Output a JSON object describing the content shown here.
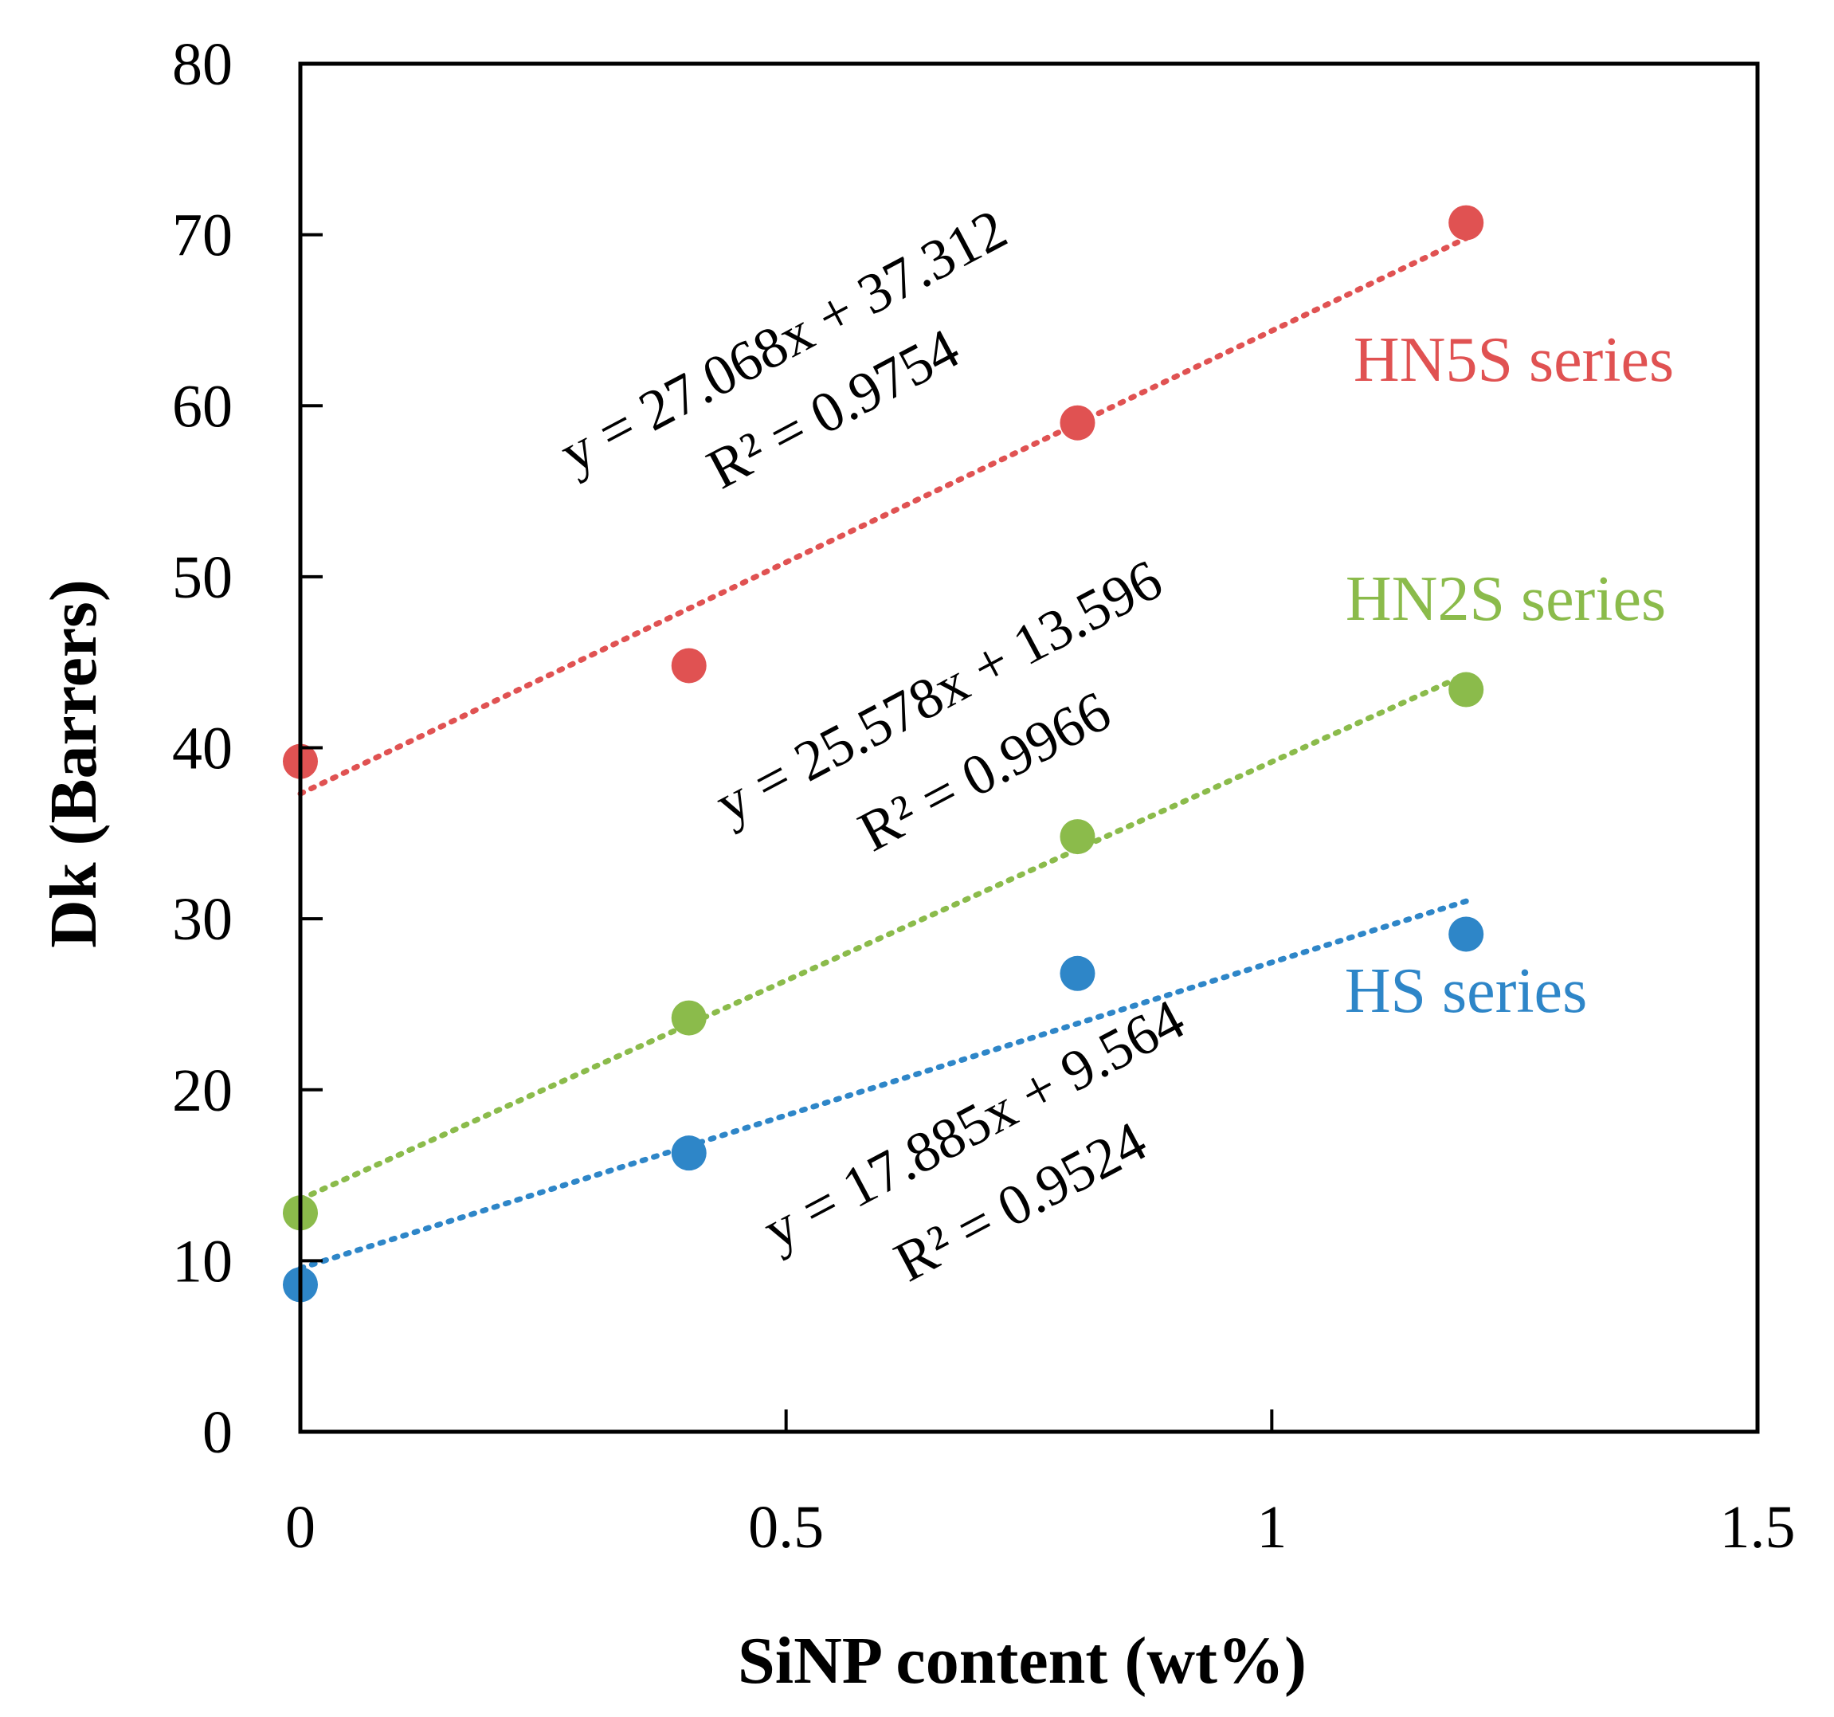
{
  "chart_data": {
    "type": "scatter",
    "title": "",
    "xlabel": "SiNP content (wt%)",
    "ylabel": "Dk (Barrers)",
    "xlim": [
      0,
      1.5
    ],
    "ylim": [
      0,
      80
    ],
    "x_ticks": [
      0,
      0.5,
      1,
      1.5
    ],
    "x_tick_labels": [
      "0",
      "0.5",
      "1",
      "1.5"
    ],
    "y_ticks": [
      0,
      10,
      20,
      30,
      40,
      50,
      60,
      70,
      80
    ],
    "y_tick_labels": [
      "0",
      "10",
      "20",
      "30",
      "40",
      "50",
      "60",
      "70",
      "80"
    ],
    "grid": false,
    "series": [
      {
        "name": "HN5S series",
        "label": "HN5S series",
        "color": "#E05252",
        "x": [
          0,
          0.4,
          0.8,
          1.2
        ],
        "y": [
          39.2,
          44.8,
          59.0,
          70.7
        ],
        "trendline": {
          "slope": 27.068,
          "intercept": 37.312,
          "style": "dotted",
          "equation": "y = 27.068x + 37.312",
          "r2": "R² = 0.9754"
        }
      },
      {
        "name": "HN2S series",
        "label": "HN2S series",
        "color": "#8BBB4B",
        "x": [
          0,
          0.4,
          0.8,
          1.2
        ],
        "y": [
          12.8,
          24.2,
          34.8,
          43.4
        ],
        "trendline": {
          "slope": 25.578,
          "intercept": 13.596,
          "style": "dotted",
          "equation": "y = 25.578x + 13.596",
          "r2": "R² = 0.9966"
        }
      },
      {
        "name": "HS series",
        "label": "HS series",
        "color": "#2E86C8",
        "x": [
          0,
          0.4,
          0.8,
          1.2
        ],
        "y": [
          8.6,
          16.3,
          26.8,
          29.1
        ],
        "trendline": {
          "slope": 17.885,
          "intercept": 9.564,
          "style": "dotted",
          "equation": "y = 17.885x + 9.564",
          "r2": "R² = 0.9524"
        }
      }
    ]
  }
}
